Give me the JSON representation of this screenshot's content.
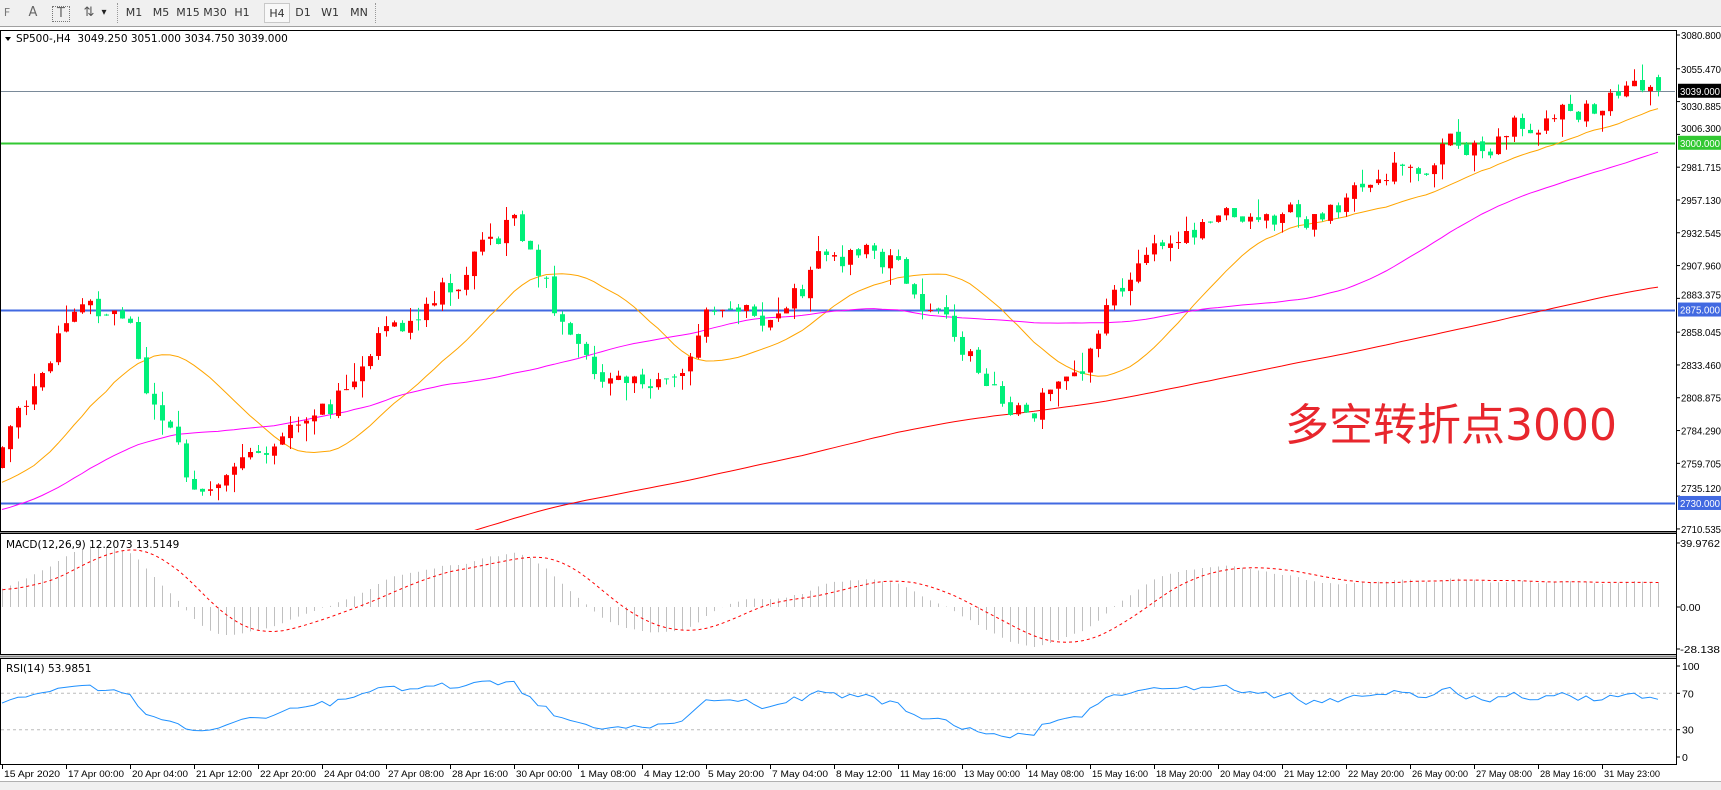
{
  "toolbar": {
    "tools": [
      {
        "name": "period-separator-icon",
        "label": "F"
      },
      {
        "name": "text-icon",
        "label": "A"
      },
      {
        "name": "text-label-icon",
        "label": "T"
      },
      {
        "name": "arrows-icon",
        "label": "⇅"
      },
      {
        "name": "chevron-down-icon",
        "label": "▾"
      }
    ],
    "timeframes": [
      "M1",
      "M5",
      "M15",
      "M30",
      "H1",
      "H4",
      "D1",
      "W1",
      "MN"
    ],
    "active_timeframe": "H4"
  },
  "chart": {
    "header": "SP500-,H4  3049.250 3051.000 3034.750 3039.000",
    "annotation": "多空转折点3000",
    "annotation_color": "#e8262d",
    "bull_color": "#ff0000",
    "bear_color": "#00f07a",
    "price_axis": [
      "3080.800",
      "3055.470",
      "3030.885",
      "3006.300",
      "2981.715",
      "2957.130",
      "2932.545",
      "2907.960",
      "2883.375",
      "2858.045",
      "2833.460",
      "2808.875",
      "2784.290",
      "2759.705",
      "2735.120",
      "2710.535"
    ],
    "levels": [
      {
        "price": 3039.0,
        "label": "3039.000",
        "color": "#000000",
        "kind": "current-price"
      },
      {
        "price": 3000.0,
        "label": "3000.000",
        "color": "#32c832",
        "kind": "horizontal-line"
      },
      {
        "price": 2875.0,
        "label": "2875.000",
        "color": "#4169e1",
        "kind": "horizontal-line"
      },
      {
        "price": 2730.0,
        "label": "2730.000",
        "color": "#4169e1",
        "kind": "horizontal-line"
      }
    ],
    "moving_averages": [
      {
        "color": "#ffa500"
      },
      {
        "color": "#ff00ff"
      },
      {
        "color": "#ff0000"
      }
    ]
  },
  "macd": {
    "label": "MACD(12,26,9) 12.2073 13.5149",
    "axis": [
      "39.9762",
      "0.00",
      "-28.138"
    ]
  },
  "rsi": {
    "label": "RSI(14) 53.9851",
    "axis": [
      "100",
      "70",
      "30",
      "0"
    ],
    "color": "#1e90ff"
  },
  "time_axis": [
    "15 Apr 2020",
    "17 Apr 00:00",
    "20 Apr 04:00",
    "21 Apr 12:00",
    "22 Apr 20:00",
    "24 Apr 04:00",
    "27 Apr 08:00",
    "28 Apr 16:00",
    "30 Apr 00:00",
    "1 May 08:00",
    "4 May 12:00",
    "5 May 20:00",
    "7 May 04:00",
    "8 May 12:00",
    "11 May 16:00",
    "13 May 00:00",
    "14 May 08:00",
    "15 May 16:00",
    "18 May 20:00",
    "20 May 04:00",
    "21 May 12:00",
    "22 May 20:00",
    "26 May 00:00",
    "27 May 08:00",
    "28 May 16:00",
    "31 May 23:00"
  ],
  "chart_data": {
    "type": "candlestick",
    "symbol": "SP500-",
    "timeframe": "H4",
    "x": [
      "15 Apr 2020",
      "17 Apr 00:00",
      "20 Apr 04:00",
      "21 Apr 12:00",
      "22 Apr 20:00",
      "24 Apr 04:00",
      "27 Apr 08:00",
      "28 Apr 16:00",
      "30 Apr 00:00",
      "1 May 08:00",
      "4 May 12:00",
      "5 May 20:00",
      "7 May 04:00",
      "8 May 12:00",
      "11 May 16:00",
      "13 May 00:00",
      "14 May 08:00",
      "15 May 16:00",
      "18 May 20:00",
      "20 May 04:00",
      "21 May 12:00",
      "22 May 20:00",
      "26 May 00:00",
      "27 May 08:00",
      "28 May 16:00",
      "31 May 23:00"
    ],
    "approx_close": [
      2762,
      2877,
      2850,
      2735,
      2780,
      2790,
      2860,
      2894,
      2943,
      2836,
      2810,
      2869,
      2869,
      2918,
      2910,
      2845,
      2795,
      2845,
      2935,
      2935,
      2935,
      2960,
      2993,
      3000,
      3025,
      3034
    ],
    "last_bar": {
      "open": 3049.25,
      "high": 3051.0,
      "low": 3034.75,
      "close": 3039.0
    },
    "ylim": [
      2710.535,
      3080.8
    ]
  }
}
